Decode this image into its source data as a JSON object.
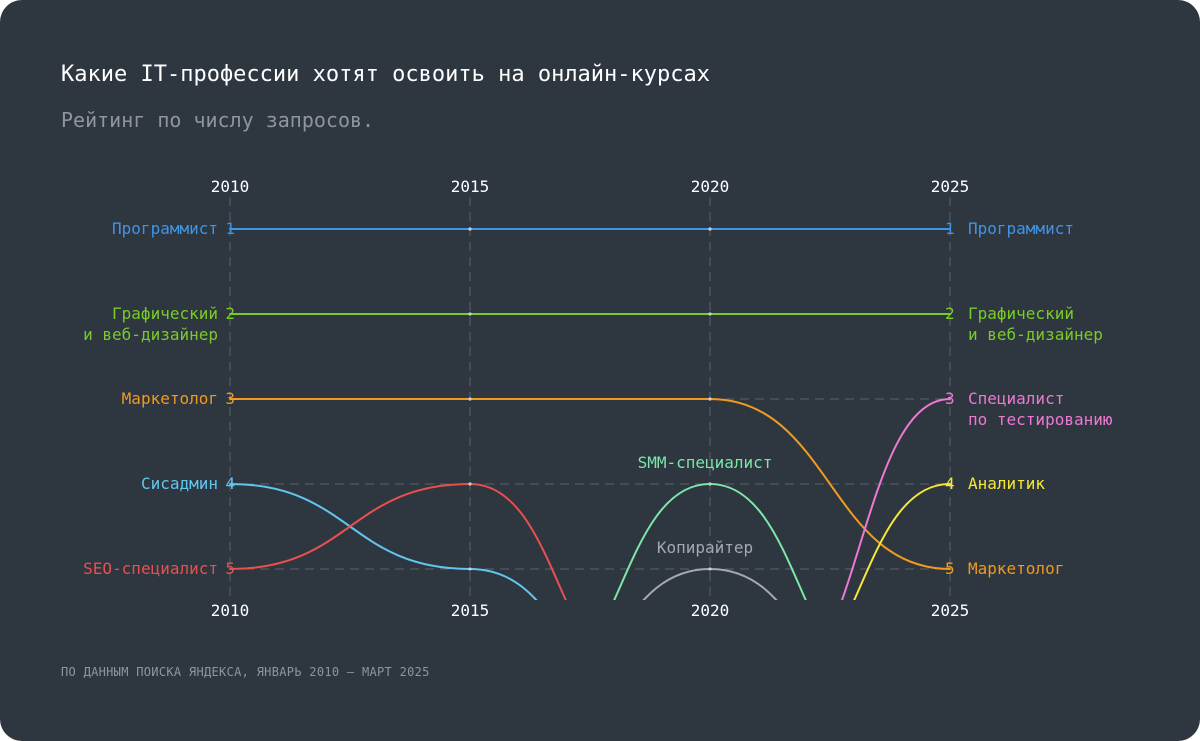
{
  "title": "Какие IT-профессии хотят освоить на онлайн-курсах",
  "subtitle": "Рейтинг по числу запросов.",
  "source": "ПО ДАННЫМ ПОИСКА ЯНДЕКСА, ЯНВАРЬ 2010 — МАРТ 2025",
  "chart_data": {
    "type": "line",
    "subtype": "bump",
    "x": [
      "2010",
      "2015",
      "2020",
      "2025"
    ],
    "y_direction": "rank, 1 at top",
    "ylim": [
      1,
      5
    ],
    "grid": true,
    "series": [
      {
        "name": "Программист",
        "color": "#3e95e6",
        "ranks": [
          1,
          1,
          1,
          1
        ],
        "left_label": [
          "Программист"
        ],
        "right_label": [
          "Программист"
        ]
      },
      {
        "name": "Графический и веб-дизайнер",
        "color": "#7bcb28",
        "ranks": [
          2,
          2,
          2,
          2
        ],
        "left_label": [
          "Графический",
          "и веб-дизайнер"
        ],
        "right_label": [
          "Графический",
          "и веб-дизайнер"
        ]
      },
      {
        "name": "Маркетолог",
        "color": "#ef9b1e",
        "ranks": [
          3,
          3,
          3,
          5
        ],
        "left_label": [
          "Маркетолог"
        ],
        "right_label": [
          "Маркетолог"
        ]
      },
      {
        "name": "Сисадмин",
        "color": "#60c6ee",
        "ranks": [
          4,
          5,
          null,
          null
        ],
        "left_label": [
          "Сисадмин"
        ]
      },
      {
        "name": "SEO-специалист",
        "color": "#e8504d",
        "ranks": [
          5,
          4,
          null,
          null
        ],
        "left_label": [
          "SEO-специалист"
        ]
      },
      {
        "name": "SMM-специалист",
        "color": "#7ee6a9",
        "ranks": [
          null,
          null,
          4,
          null
        ],
        "mid_label": "SMM-специалист"
      },
      {
        "name": "Копирайтер",
        "color": "#a5a9ad",
        "ranks": [
          null,
          null,
          5,
          null
        ],
        "mid_label": "Копирайтер"
      },
      {
        "name": "Специалист по тестированию",
        "color": "#ee79d2",
        "ranks": [
          null,
          null,
          null,
          3
        ],
        "right_label": [
          "Специалист",
          "по тестированию"
        ]
      },
      {
        "name": "Аналитик",
        "color": "#f5e936",
        "ranks": [
          null,
          null,
          null,
          4
        ],
        "right_label": [
          "Аналитик"
        ]
      }
    ]
  }
}
